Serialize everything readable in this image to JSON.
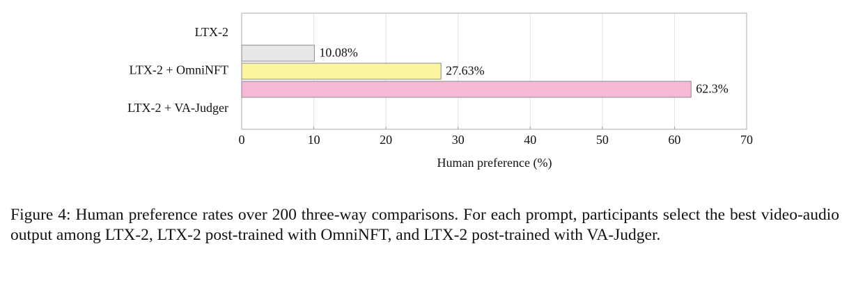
{
  "chart_data": {
    "type": "bar",
    "orientation": "horizontal",
    "categories": [
      "LTX-2",
      "LTX-2 + OmniNFT",
      "LTX-2 + VA-Judger"
    ],
    "values": [
      10.08,
      27.63,
      62.3
    ],
    "value_labels": [
      "10.08%",
      "27.63%",
      "62.3%"
    ],
    "colors": [
      "#e8e8e8",
      "#fbf5a2",
      "#f5b9d6"
    ],
    "x_label": "Human preference (%)",
    "xlim": [
      0,
      70
    ],
    "xticks": [
      0,
      10,
      20,
      30,
      40,
      50,
      60,
      70
    ],
    "grid": true,
    "caption": "Figure 4: Human preference rates over 200 three-way comparisons. For each prompt, participants select the best video-audio output among LTX-2, LTX-2 post-trained with OmniNFT, and LTX-2 post-trained with VA-Judger."
  }
}
